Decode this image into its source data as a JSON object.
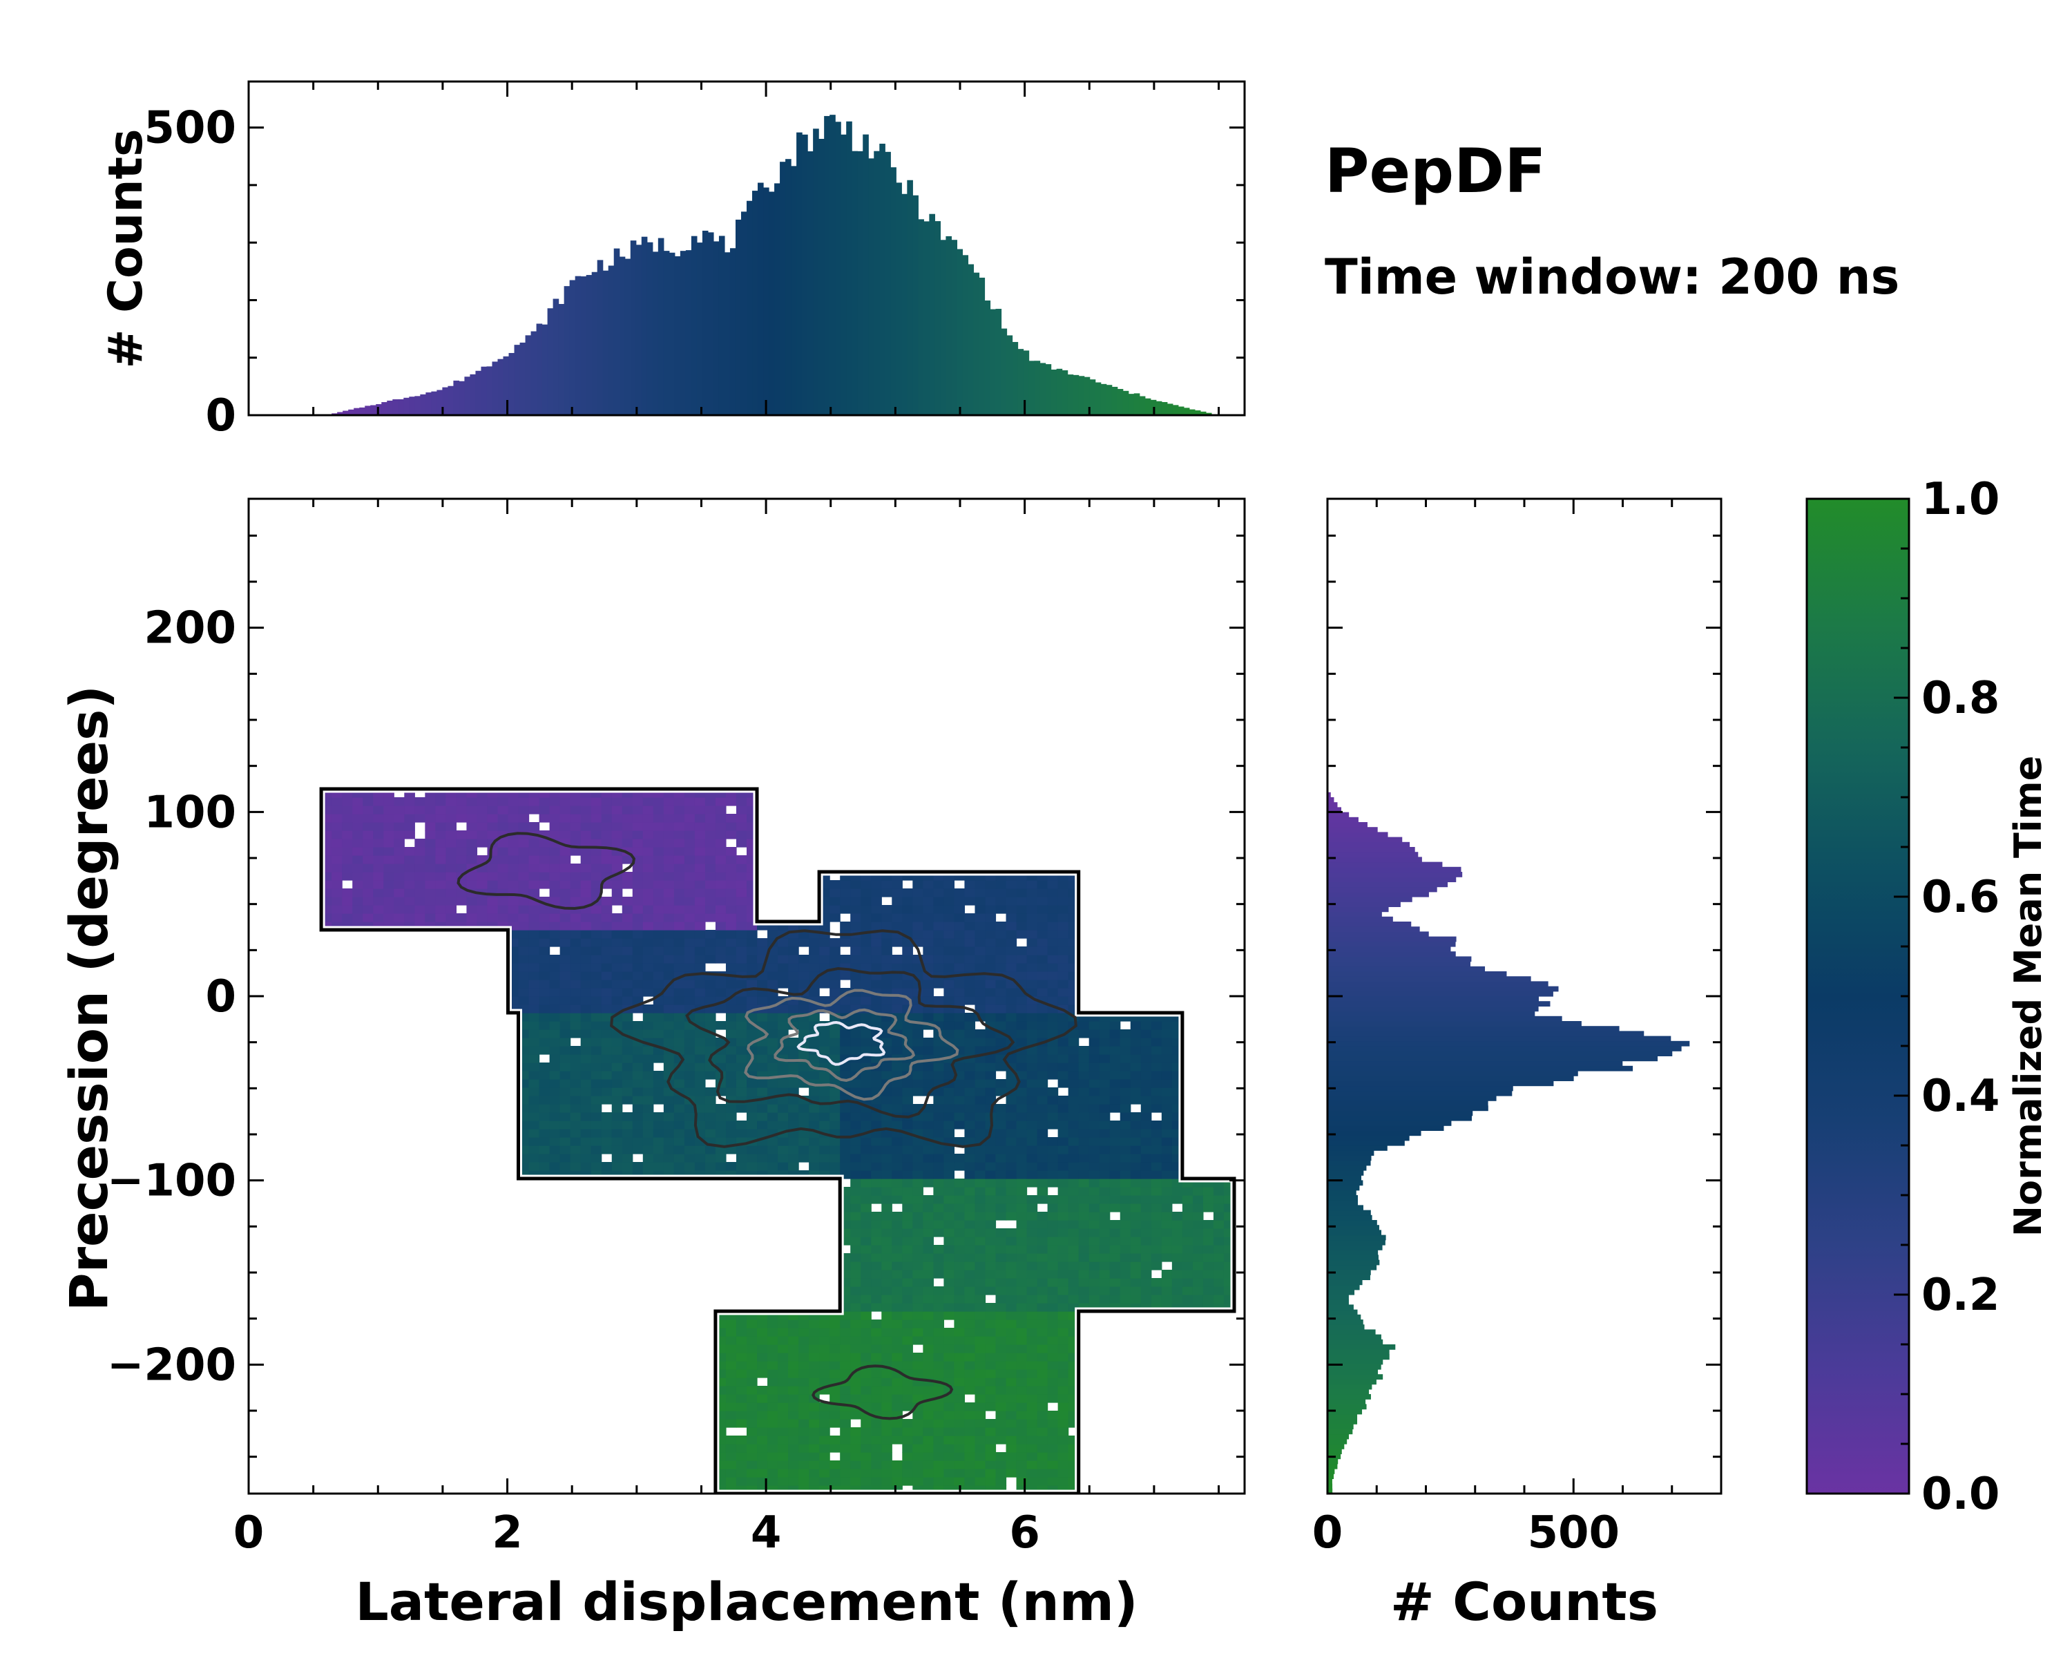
{
  "title": "PepDF",
  "subtitle": "Time window: 200 ns",
  "colors": {
    "cmap": [
      "#6a33a3",
      "#4b3b99",
      "#2e4187",
      "#173f74",
      "#0b3b66",
      "#0d4f62",
      "#15665a",
      "#1c7a47",
      "#228c2a"
    ],
    "contour_outer": "#000000",
    "contour_dark": "#2b2b2b",
    "contour_mid": "#7a7a7a",
    "contour_light": "#e8e8f8"
  },
  "chart_data": [
    {
      "id": "top_histogram",
      "type": "bar",
      "xlabel": "",
      "ylabel": "# Counts",
      "xlim": [
        0,
        7.7
      ],
      "ylim": [
        0,
        580
      ],
      "yticks": [
        0,
        500
      ],
      "ytick_labels": [
        "0",
        "500"
      ],
      "x_profile": [
        0.6,
        1.0,
        1.5,
        1.8,
        2.0,
        2.2,
        2.5,
        2.7,
        3.0,
        3.1,
        3.3,
        3.5,
        3.7,
        4.0,
        4.3,
        4.5,
        4.6,
        4.8,
        5.0,
        5.3,
        5.6,
        5.9,
        6.1,
        6.4,
        6.8,
        7.2,
        7.5
      ],
      "count_profile": [
        0,
        20,
        45,
        80,
        110,
        140,
        230,
        260,
        290,
        300,
        290,
        320,
        290,
        400,
        480,
        510,
        500,
        470,
        420,
        330,
        260,
        130,
        90,
        70,
        40,
        15,
        0
      ]
    },
    {
      "id": "joint_map",
      "type": "heatmap",
      "xlabel": "Lateral displacement (nm)",
      "ylabel": "Precession (degrees)",
      "xlim": [
        0,
        7.7
      ],
      "ylim": [
        -270,
        270
      ],
      "xticks": [
        0,
        2,
        4,
        6
      ],
      "xtick_labels": [
        "0",
        "2",
        "4",
        "6"
      ],
      "yticks": [
        -200,
        -100,
        0,
        100,
        200
      ],
      "ytick_labels": [
        "−200",
        "−100",
        "0",
        "100",
        "200"
      ],
      "color_encodes": "Normalized Mean Time",
      "regions": [
        {
          "x": [
            0.6,
            3.9
          ],
          "y": [
            35,
            112
          ],
          "time": 0.05
        },
        {
          "x": [
            2.0,
            6.4
          ],
          "y": [
            -10,
            40
          ],
          "time": 0.38
        },
        {
          "x": [
            4.4,
            6.4
          ],
          "y": [
            40,
            68
          ],
          "time": 0.4
        },
        {
          "x": [
            2.1,
            4.6
          ],
          "y": [
            -100,
            -10
          ],
          "time": 0.66
        },
        {
          "x": [
            4.3,
            7.2
          ],
          "y": [
            -100,
            -10
          ],
          "time": 0.55
        },
        {
          "x": [
            4.6,
            7.6
          ],
          "y": [
            -170,
            -100
          ],
          "time": 0.84
        },
        {
          "x": [
            3.6,
            6.4
          ],
          "y": [
            -270,
            -170
          ],
          "time": 0.94
        }
      ],
      "density_peak": {
        "x": 4.6,
        "y": -25
      }
    },
    {
      "id": "right_histogram",
      "type": "bar",
      "orientation": "horizontal",
      "xlabel": "# Counts",
      "ylabel": "",
      "xlim": [
        0,
        800
      ],
      "ylim": [
        -270,
        270
      ],
      "xticks": [
        0,
        500
      ],
      "xtick_labels": [
        "0",
        "500"
      ],
      "y_profile": [
        -262,
        -240,
        -210,
        -190,
        -180,
        -165,
        -150,
        -140,
        -130,
        -110,
        -100,
        -85,
        -70,
        -55,
        -45,
        -38,
        -30,
        -20,
        -10,
        -5,
        5,
        15,
        25,
        30,
        45,
        55,
        65,
        70,
        75,
        85,
        100,
        112
      ],
      "count_profile": [
        10,
        40,
        100,
        130,
        80,
        40,
        90,
        110,
        120,
        60,
        70,
        90,
        250,
        340,
        460,
        610,
        720,
        640,
        460,
        420,
        460,
        300,
        250,
        260,
        110,
        190,
        270,
        250,
        200,
        150,
        30,
        0
      ]
    },
    {
      "id": "colorbar",
      "type": "heatmap",
      "label": "Normalized Mean Time",
      "range": [
        0,
        1
      ],
      "ticks": [
        0.0,
        0.2,
        0.4,
        0.6,
        0.8,
        1.0
      ],
      "tick_labels": [
        "0.0",
        "0.2",
        "0.4",
        "0.6",
        "0.8",
        "1.0"
      ]
    }
  ]
}
